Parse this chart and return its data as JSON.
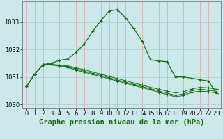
{
  "title": "Graphe pression niveau de la mer (hPa)",
  "background_color": "#cce8e8",
  "grid_color": "#aacccc",
  "line_color": "#1a6b1a",
  "hours": [
    0,
    1,
    2,
    3,
    4,
    5,
    6,
    7,
    8,
    9,
    10,
    11,
    12,
    13,
    14,
    15,
    16,
    17,
    18,
    19,
    20,
    21,
    22,
    23
  ],
  "main_series": [
    1030.65,
    1031.1,
    1031.45,
    1031.5,
    1031.6,
    1031.65,
    1031.9,
    1032.2,
    1032.65,
    1033.05,
    1033.4,
    1033.45,
    1033.15,
    1032.75,
    1032.3,
    1031.62,
    1031.58,
    1031.55,
    1031.0,
    1031.0,
    1030.95,
    1030.9,
    1030.85,
    1030.4
  ],
  "line2_y": [
    1030.65,
    1031.1,
    1031.45,
    1031.46,
    1031.43,
    1031.4,
    1031.33,
    1031.26,
    1031.18,
    1031.1,
    1031.02,
    1030.94,
    1030.86,
    1030.78,
    1030.7,
    1030.62,
    1030.55,
    1030.48,
    1030.42,
    1030.46,
    1030.56,
    1030.62,
    1030.6,
    1030.55
  ],
  "line3_y": [
    1030.65,
    1031.1,
    1031.44,
    1031.45,
    1031.41,
    1031.37,
    1031.29,
    1031.21,
    1031.13,
    1031.05,
    1030.97,
    1030.89,
    1030.81,
    1030.73,
    1030.65,
    1030.57,
    1030.49,
    1030.41,
    1030.33,
    1030.38,
    1030.5,
    1030.55,
    1030.52,
    1030.47
  ],
  "line4_y": [
    1030.65,
    1031.1,
    1031.43,
    1031.44,
    1031.39,
    1031.34,
    1031.25,
    1031.17,
    1031.09,
    1031.01,
    1030.93,
    1030.85,
    1030.77,
    1030.69,
    1030.61,
    1030.53,
    1030.44,
    1030.36,
    1030.28,
    1030.32,
    1030.44,
    1030.48,
    1030.46,
    1030.41
  ],
  "ylim_min": 1029.85,
  "ylim_max": 1033.75,
  "yticks": [
    1030,
    1031,
    1032,
    1033
  ],
  "title_fontsize": 7.5,
  "tick_fontsize": 6
}
